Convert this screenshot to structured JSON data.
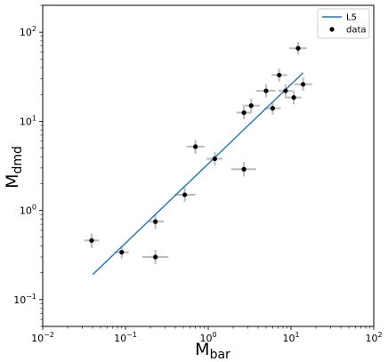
{
  "chart_data": {
    "type": "scatter",
    "title": "",
    "xscale": "log",
    "yscale": "log",
    "xlim": [
      0.01,
      100
    ],
    "ylim": [
      0.05,
      200
    ],
    "grid": false,
    "legend_placement": "top-right",
    "xlabel": {
      "main": "M",
      "sub": "bar"
    },
    "ylabel": {
      "main": "M",
      "sub": "dmd"
    },
    "x_ticks": [
      {
        "value": 0.01,
        "base": "10",
        "exp": "−2"
      },
      {
        "value": 0.1,
        "base": "10",
        "exp": "−1"
      },
      {
        "value": 1,
        "base": "10",
        "exp": "0"
      },
      {
        "value": 10,
        "base": "10",
        "exp": "1"
      },
      {
        "value": 100,
        "base": "10",
        "exp": "2"
      }
    ],
    "y_ticks": [
      {
        "value": 0.1,
        "base": "10",
        "exp": "−1"
      },
      {
        "value": 1,
        "base": "10",
        "exp": "0"
      },
      {
        "value": 10,
        "base": "10",
        "exp": "1"
      },
      {
        "value": 100,
        "base": "10",
        "exp": "2"
      }
    ],
    "series": [
      {
        "name": "L5",
        "kind": "line",
        "color": "#1f77b4",
        "points": [
          [
            0.04,
            0.19
          ],
          [
            14,
            35
          ]
        ]
      },
      {
        "name": "data",
        "kind": "errorbar",
        "color": "#000000",
        "error_color": "#bbbbbb",
        "points": [
          {
            "x": 0.039,
            "y": 0.46,
            "xlo": 0.032,
            "xhi": 0.048,
            "ylo": 0.38,
            "yhi": 0.55
          },
          {
            "x": 0.09,
            "y": 0.34,
            "xlo": 0.074,
            "xhi": 0.11,
            "ylo": 0.29,
            "yhi": 0.4
          },
          {
            "x": 0.23,
            "y": 0.75,
            "xlo": 0.19,
            "xhi": 0.29,
            "ylo": 0.62,
            "yhi": 0.9
          },
          {
            "x": 0.23,
            "y": 0.3,
            "xlo": 0.16,
            "xhi": 0.33,
            "ylo": 0.25,
            "yhi": 0.36
          },
          {
            "x": 0.52,
            "y": 1.5,
            "xlo": 0.39,
            "xhi": 0.7,
            "ylo": 1.25,
            "yhi": 1.8
          },
          {
            "x": 0.7,
            "y": 5.2,
            "xlo": 0.55,
            "xhi": 0.9,
            "ylo": 4.3,
            "yhi": 6.2
          },
          {
            "x": 1.2,
            "y": 3.8,
            "xlo": 0.95,
            "xhi": 1.5,
            "ylo": 3.2,
            "yhi": 4.5
          },
          {
            "x": 2.7,
            "y": 2.9,
            "xlo": 1.9,
            "xhi": 3.8,
            "ylo": 2.4,
            "yhi": 3.5
          },
          {
            "x": 2.7,
            "y": 12.5,
            "xlo": 2.2,
            "xhi": 3.3,
            "ylo": 10.5,
            "yhi": 14.5
          },
          {
            "x": 3.3,
            "y": 15,
            "xlo": 2.6,
            "xhi": 4.2,
            "ylo": 12.5,
            "yhi": 18
          },
          {
            "x": 5.0,
            "y": 22,
            "xlo": 3.8,
            "xhi": 6.5,
            "ylo": 18.5,
            "yhi": 26
          },
          {
            "x": 6.0,
            "y": 14,
            "xlo": 4.8,
            "xhi": 7.5,
            "ylo": 11.8,
            "yhi": 16.5
          },
          {
            "x": 7.2,
            "y": 33,
            "xlo": 5.8,
            "xhi": 9.0,
            "ylo": 28,
            "yhi": 39
          },
          {
            "x": 8.6,
            "y": 22,
            "xlo": 7.0,
            "xhi": 10.5,
            "ylo": 18.5,
            "yhi": 26
          },
          {
            "x": 10.8,
            "y": 18.5,
            "xlo": 8.5,
            "xhi": 13.5,
            "ylo": 15.5,
            "yhi": 22
          },
          {
            "x": 12.2,
            "y": 66,
            "xlo": 9.5,
            "xhi": 15.5,
            "ylo": 56,
            "yhi": 78
          },
          {
            "x": 14,
            "y": 26,
            "xlo": 11,
            "xhi": 18,
            "ylo": 22,
            "yhi": 31
          }
        ]
      }
    ]
  }
}
